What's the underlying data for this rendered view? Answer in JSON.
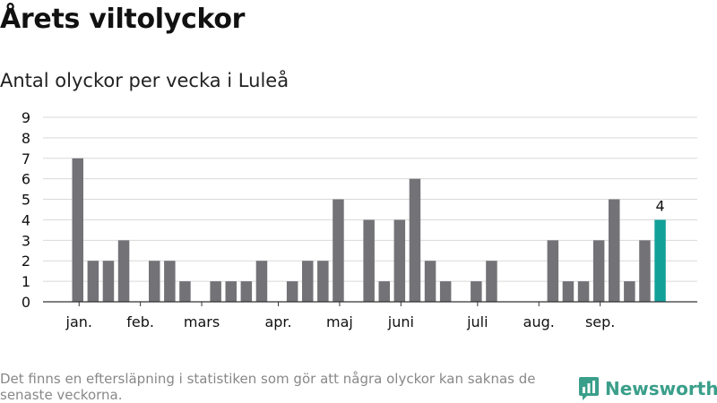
{
  "title": "Årets viltolyckor",
  "subtitle": "Antal olyckor per vecka i Luleå",
  "footnote": "Det finns en eftersläpning i statistiken som gör att några olyckor kan saknas de senaste veckorna.",
  "brand": {
    "name": "Newsworthy",
    "color": "#3a9f8a"
  },
  "colors": {
    "bar": "#737277",
    "highlight": "#11a198",
    "grid": "#d9d9d9",
    "axis": "#333333"
  },
  "chart_data": {
    "type": "bar",
    "title": "Antal olyckor per vecka i Luleå",
    "xlabel": "",
    "ylabel": "",
    "ylim": [
      0,
      9
    ],
    "yticks": [
      "0",
      "1",
      "2",
      "3",
      "4",
      "5",
      "6",
      "7",
      "8",
      "9"
    ],
    "grid": true,
    "month_labels": [
      "jan.",
      "feb.",
      "mars",
      "apr.",
      "maj",
      "juni",
      "juli",
      "aug.",
      "sep."
    ],
    "values": [
      7,
      2,
      2,
      3,
      0,
      2,
      2,
      1,
      0,
      1,
      1,
      1,
      2,
      0,
      1,
      2,
      2,
      5,
      0,
      4,
      1,
      4,
      6,
      2,
      1,
      0,
      1,
      2,
      0,
      0,
      0,
      3,
      1,
      1,
      3,
      5,
      1,
      3,
      4
    ],
    "highlight_index": 38,
    "annotation": {
      "index": 38,
      "text": "4"
    }
  }
}
